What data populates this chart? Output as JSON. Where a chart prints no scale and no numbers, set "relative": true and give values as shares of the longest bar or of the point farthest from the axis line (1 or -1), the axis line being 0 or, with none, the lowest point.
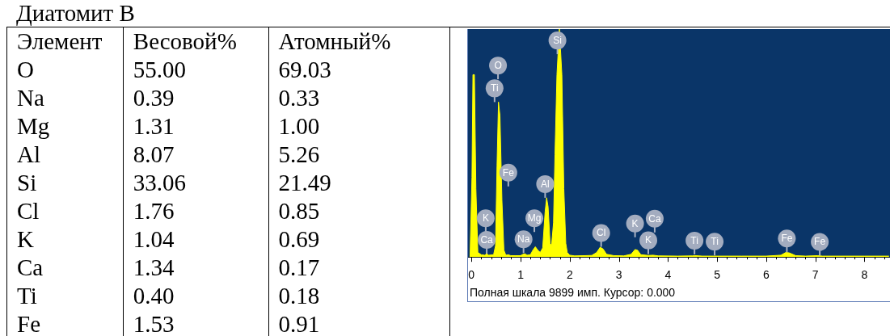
{
  "chart_data": [
    {
      "type": "other",
      "title": "Диатомит В",
      "ylabel": "Элемент",
      "categories": [
        "Весовой%",
        "Атомный%"
      ],
      "y_categories": [
        "O",
        "Na",
        "Mg",
        "Al",
        "Si",
        "Cl",
        "K",
        "Ca",
        "Ti",
        "Fe"
      ],
      "cell_labels": [
        [
          "55.00",
          "69.03"
        ],
        [
          "0.39",
          "0.33"
        ],
        [
          "1.31",
          "1.00"
        ],
        [
          "8.07",
          "5.26"
        ],
        [
          "33.06",
          "21.49"
        ],
        [
          "1.76",
          "0.85"
        ],
        [
          "1.04",
          "0.69"
        ],
        [
          "1.34",
          "0.17"
        ],
        [
          "0.40",
          "0.18"
        ],
        [
          "1.53",
          "0.91"
        ]
      ]
    },
    {
      "type": "area",
      "relative": true,
      "color": "#ffff00",
      "x": [
        -0.03,
        0.01,
        0.03,
        0.06,
        0.09,
        0.13,
        0.2,
        0.27,
        0.31,
        0.35,
        0.45,
        0.49,
        0.52,
        0.55,
        0.58,
        0.62,
        0.66,
        0.7,
        0.75,
        0.8,
        0.9,
        1.0,
        1.05,
        1.09,
        1.13,
        1.2,
        1.25,
        1.3,
        1.35,
        1.4,
        1.45,
        1.5,
        1.53,
        1.56,
        1.6,
        1.63,
        1.67,
        1.7,
        1.74,
        1.79,
        1.84,
        1.88,
        1.92,
        1.95,
        2.0,
        2.1,
        2.3,
        2.45,
        2.55,
        2.62,
        2.68,
        2.75,
        2.9,
        3.1,
        3.25,
        3.33,
        3.38,
        3.45,
        3.6,
        3.7,
        3.8,
        4.2,
        4.5,
        4.55,
        4.7,
        5.0,
        5.5,
        6.0,
        6.3,
        6.4,
        6.47,
        6.6,
        6.8,
        7.05,
        7.15,
        7.5,
        8.0,
        8.5
      ],
      "values": [
        0,
        0.35,
        0.8,
        0.8,
        0.3,
        0.02,
        0.01,
        0.008,
        0.014,
        0.008,
        0.01,
        0.05,
        0.4,
        0.68,
        0.62,
        0.25,
        0.03,
        0.008,
        0.01,
        0.006,
        0.006,
        0.006,
        0.012,
        0.014,
        0.008,
        0.01,
        0.03,
        0.045,
        0.03,
        0.02,
        0.04,
        0.2,
        0.26,
        0.22,
        0.06,
        0.05,
        0.15,
        0.45,
        0.8,
        1,
        0.8,
        0.3,
        0.06,
        0.02,
        0.008,
        0.005,
        0.006,
        0.007,
        0.02,
        0.043,
        0.035,
        0.012,
        0.006,
        0.005,
        0.012,
        0.033,
        0.03,
        0.01,
        0.007,
        0.008,
        0.005,
        0.004,
        0.005,
        0.006,
        0.004,
        0.004,
        0.004,
        0.004,
        0.008,
        0.02,
        0.018,
        0.006,
        0.004,
        0.006,
        0.004,
        0.004,
        0.004,
        0.004
      ],
      "xlim": [
        -0.07,
        8.52
      ],
      "xticks": [
        0,
        {
          "value": 0.2,
          "label": null
        },
        {
          "value": 0.4,
          "label": null
        },
        {
          "value": 0.6,
          "label": null
        },
        {
          "value": 0.8,
          "label": null
        },
        1,
        {
          "value": 1.2,
          "label": null
        },
        {
          "value": 1.4,
          "label": null
        },
        {
          "value": 1.6,
          "label": null
        },
        {
          "value": 1.8,
          "label": null
        },
        2,
        {
          "value": 2.2,
          "label": null
        },
        {
          "value": 2.4,
          "label": null
        },
        {
          "value": 2.6,
          "label": null
        },
        {
          "value": 2.8,
          "label": null
        },
        3,
        {
          "value": 3.2,
          "label": null
        },
        {
          "value": 3.4,
          "label": null
        },
        {
          "value": 3.6,
          "label": null
        },
        {
          "value": 3.8,
          "label": null
        },
        4,
        {
          "value": 4.2,
          "label": null
        },
        {
          "value": 4.4,
          "label": null
        },
        {
          "value": 4.6,
          "label": null
        },
        {
          "value": 4.8,
          "label": null
        },
        5,
        {
          "value": 5.2,
          "label": null
        },
        {
          "value": 5.4,
          "label": null
        },
        {
          "value": 5.6,
          "label": null
        },
        {
          "value": 5.8,
          "label": null
        },
        6,
        {
          "value": 6.2,
          "label": null
        },
        {
          "value": 6.4,
          "label": null
        },
        {
          "value": 6.6,
          "label": null
        },
        {
          "value": 6.8,
          "label": null
        },
        7,
        {
          "value": 7.2,
          "label": null
        },
        {
          "value": 7.4,
          "label": null
        },
        {
          "value": 7.6,
          "label": null
        },
        {
          "value": 7.8,
          "label": null
        },
        8,
        {
          "value": 8.2,
          "label": null
        },
        {
          "value": 8.4,
          "label": null
        }
      ],
      "annotations": [
        {
          "text": "Si",
          "x": 1.75,
          "y": 0.95
        },
        {
          "text": "O",
          "x": 0.54,
          "y": 0.84
        },
        {
          "text": "Ti",
          "x": 0.47,
          "y": 0.74
        },
        {
          "text": "Fe",
          "x": 0.75,
          "y": 0.37
        },
        {
          "text": "Al",
          "x": 1.5,
          "y": 0.32
        },
        {
          "text": "K",
          "x": 0.29,
          "y": 0.17
        },
        {
          "text": "Mg",
          "x": 1.28,
          "y": 0.17
        },
        {
          "text": "Ca",
          "x": 0.31,
          "y": 0.075
        },
        {
          "text": "Na",
          "x": 1.06,
          "y": 0.078
        },
        {
          "text": "Cl",
          "x": 2.64,
          "y": 0.105
        },
        {
          "text": "K",
          "x": 3.33,
          "y": 0.147
        },
        {
          "text": "Ca",
          "x": 3.73,
          "y": 0.168
        },
        {
          "text": "K",
          "x": 3.6,
          "y": 0.073
        },
        {
          "text": "Ti",
          "x": 4.54,
          "y": 0.072
        },
        {
          "text": "Ti",
          "x": 4.95,
          "y": 0.067
        },
        {
          "text": "Fe",
          "x": 6.42,
          "y": 0.081
        },
        {
          "text": "Fe",
          "x": 7.09,
          "y": 0.066
        },
        "Полная шкала 9899 имп. Курсор: 0.000"
      ]
    }
  ]
}
